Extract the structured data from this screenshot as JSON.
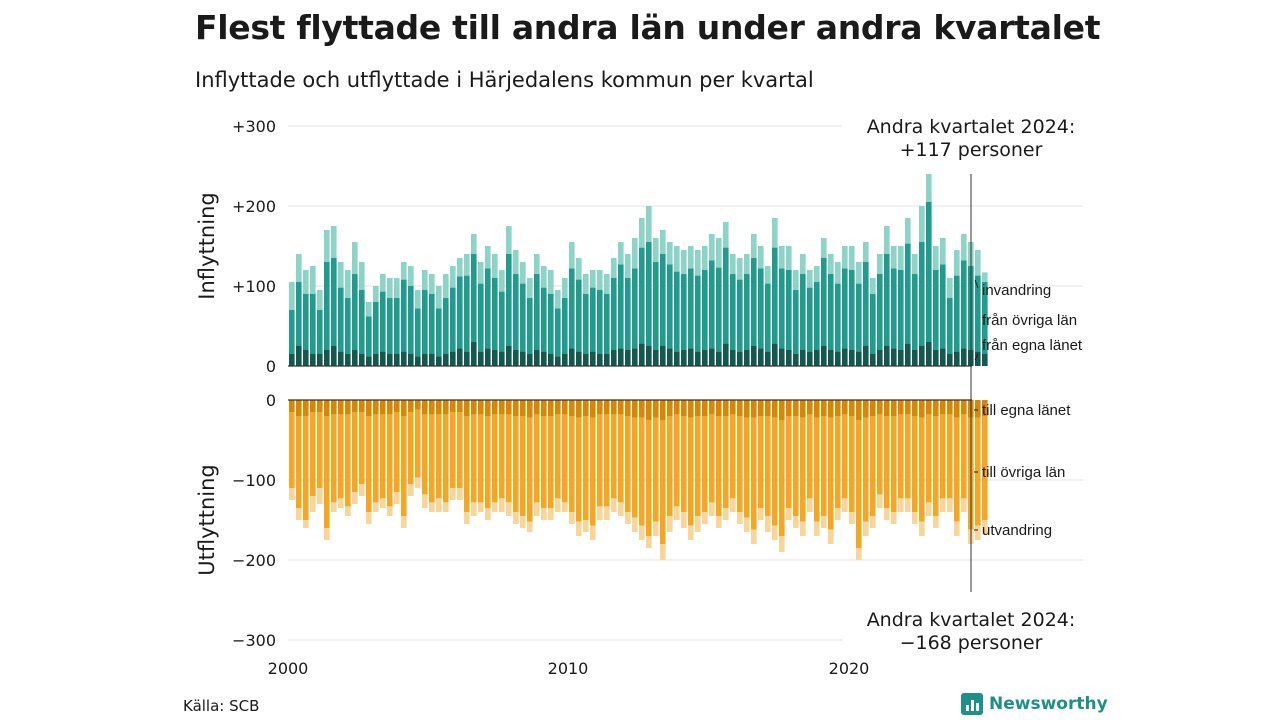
{
  "title": "Flest flyttade till andra län under andra kvartalet",
  "subtitle": "Inflyttade och utflyttade i Härjedalens kommun per kvartal",
  "source": "Källa: SCB",
  "brand": "Newsworthy",
  "colors": {
    "in_egna": "#15584f",
    "in_ovriga": "#1f9c8d",
    "in_invandring": "#8cd3c8",
    "ut_egna": "#d98600",
    "ut_ovriga": "#f5a623",
    "ut_utvandring": "#f8d699",
    "grid": "#e3e3e3",
    "baseline": "#333333"
  },
  "chart_data": {
    "type": "bar",
    "stacked": true,
    "x_start": "2000 Q1",
    "x_tick_labels": [
      "2000",
      "2010",
      "2020"
    ],
    "y_tick_labels": [
      "+300",
      "+200",
      "+100",
      "0",
      "0",
      "−100",
      "−200",
      "−300"
    ],
    "ylim_in": [
      0,
      300
    ],
    "ylim_out": [
      -300,
      0
    ],
    "y_axis_title_in": "Inflyttning",
    "y_axis_title_out": "Utflyttning",
    "series_in_labels": [
      "invandring",
      "från övriga län",
      "från egna länet"
    ],
    "series_out_labels": [
      "till egna länet",
      "till övriga län",
      "utvandring"
    ],
    "annotation_in": [
      "Andra kvartalet 2024:",
      "+117 personer"
    ],
    "annotation_out": [
      "Andra kvartalet 2024:",
      "−168 personer"
    ],
    "in_total": [
      105,
      140,
      120,
      125,
      95,
      170,
      175,
      130,
      120,
      155,
      130,
      80,
      100,
      115,
      110,
      110,
      130,
      125,
      95,
      120,
      115,
      100,
      115,
      125,
      135,
      140,
      165,
      130,
      150,
      140,
      120,
      175,
      145,
      130,
      110,
      140,
      125,
      120,
      95,
      110,
      155,
      135,
      115,
      120,
      120,
      115,
      135,
      155,
      140,
      160,
      185,
      200,
      160,
      170,
      155,
      150,
      145,
      150,
      145,
      150,
      165,
      160,
      180,
      140,
      135,
      140,
      165,
      150,
      125,
      185,
      150,
      150,
      120,
      140,
      120,
      125,
      160,
      140,
      130,
      150,
      150,
      130,
      155,
      110,
      140,
      175,
      150,
      150,
      185,
      140,
      200,
      240,
      150,
      160,
      110,
      145,
      165,
      155,
      145,
      117
    ],
    "in_egna": [
      15,
      25,
      20,
      15,
      15,
      20,
      25,
      18,
      15,
      20,
      15,
      12,
      15,
      18,
      15,
      15,
      18,
      15,
      12,
      15,
      15,
      12,
      15,
      18,
      22,
      18,
      30,
      18,
      22,
      20,
      18,
      25,
      20,
      18,
      15,
      20,
      18,
      15,
      12,
      15,
      22,
      18,
      15,
      18,
      15,
      15,
      20,
      22,
      20,
      22,
      28,
      25,
      20,
      25,
      22,
      18,
      20,
      22,
      18,
      20,
      22,
      18,
      28,
      20,
      18,
      20,
      25,
      22,
      18,
      28,
      22,
      20,
      15,
      20,
      18,
      20,
      25,
      20,
      18,
      22,
      20,
      18,
      25,
      15,
      20,
      25,
      22,
      20,
      28,
      20,
      25,
      30,
      20,
      22,
      15,
      18,
      22,
      20,
      18,
      15
    ],
    "in_ovriga": [
      55,
      80,
      70,
      75,
      55,
      110,
      110,
      80,
      70,
      95,
      80,
      50,
      65,
      75,
      70,
      70,
      90,
      85,
      60,
      80,
      75,
      60,
      70,
      80,
      90,
      95,
      110,
      85,
      100,
      90,
      75,
      115,
      95,
      85,
      70,
      95,
      80,
      75,
      60,
      70,
      100,
      90,
      75,
      80,
      80,
      75,
      90,
      105,
      90,
      100,
      120,
      130,
      110,
      115,
      105,
      100,
      95,
      100,
      95,
      100,
      110,
      105,
      120,
      95,
      90,
      95,
      110,
      100,
      85,
      120,
      100,
      100,
      80,
      95,
      80,
      85,
      110,
      95,
      85,
      100,
      100,
      85,
      105,
      75,
      95,
      115,
      100,
      100,
      125,
      95,
      130,
      175,
      100,
      105,
      70,
      95,
      110,
      105,
      95,
      90
    ],
    "ut_total": [
      125,
      150,
      160,
      140,
      130,
      175,
      140,
      135,
      145,
      130,
      120,
      155,
      140,
      135,
      145,
      130,
      160,
      120,
      110,
      135,
      140,
      140,
      140,
      125,
      125,
      155,
      145,
      140,
      150,
      140,
      140,
      145,
      155,
      160,
      165,
      145,
      150,
      150,
      140,
      140,
      155,
      170,
      165,
      175,
      150,
      150,
      140,
      145,
      155,
      165,
      175,
      185,
      170,
      200,
      165,
      150,
      160,
      175,
      165,
      155,
      145,
      160,
      150,
      140,
      155,
      165,
      180,
      150,
      165,
      175,
      190,
      150,
      160,
      170,
      140,
      170,
      160,
      180,
      150,
      140,
      155,
      200,
      170,
      160,
      135,
      150,
      155,
      140,
      140,
      155,
      170,
      145,
      160,
      140,
      140,
      170,
      140,
      180,
      175,
      168
    ],
    "ut_egna": [
      15,
      20,
      20,
      15,
      15,
      20,
      18,
      18,
      18,
      15,
      15,
      20,
      18,
      18,
      18,
      15,
      20,
      15,
      12,
      18,
      18,
      18,
      18,
      15,
      15,
      20,
      18,
      18,
      20,
      18,
      18,
      18,
      20,
      20,
      22,
      18,
      20,
      20,
      18,
      18,
      20,
      22,
      20,
      22,
      18,
      18,
      18,
      18,
      20,
      22,
      22,
      25,
      22,
      25,
      20,
      18,
      20,
      22,
      20,
      20,
      18,
      20,
      20,
      18,
      20,
      22,
      22,
      20,
      20,
      22,
      25,
      20,
      20,
      22,
      18,
      22,
      20,
      22,
      20,
      18,
      20,
      25,
      22,
      20,
      18,
      20,
      20,
      18,
      18,
      20,
      22,
      18,
      20,
      18,
      18,
      22,
      18,
      22,
      22,
      20
    ],
    "ut_ovriga": [
      95,
      115,
      130,
      105,
      95,
      140,
      110,
      105,
      115,
      100,
      90,
      120,
      110,
      105,
      115,
      100,
      125,
      90,
      85,
      100,
      110,
      105,
      110,
      95,
      95,
      120,
      110,
      110,
      115,
      110,
      105,
      110,
      120,
      125,
      130,
      110,
      115,
      115,
      105,
      110,
      120,
      130,
      130,
      135,
      115,
      115,
      105,
      110,
      120,
      125,
      135,
      145,
      130,
      155,
      125,
      115,
      120,
      135,
      125,
      120,
      110,
      125,
      115,
      105,
      120,
      125,
      140,
      115,
      125,
      135,
      145,
      115,
      125,
      130,
      105,
      130,
      125,
      140,
      115,
      105,
      120,
      160,
      130,
      125,
      100,
      115,
      120,
      105,
      105,
      120,
      130,
      110,
      125,
      105,
      105,
      130,
      105,
      140,
      135,
      130
    ]
  }
}
